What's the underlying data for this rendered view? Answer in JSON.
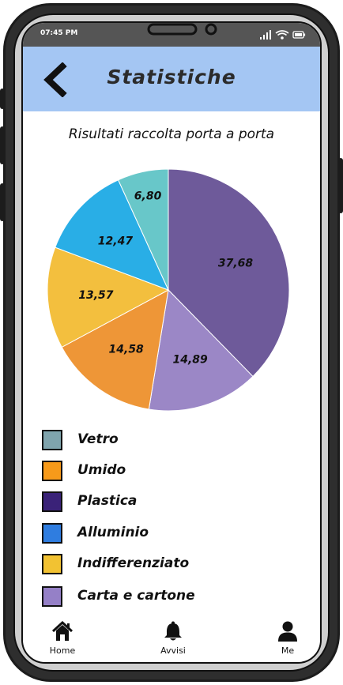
{
  "status_bar": {
    "time": "07:45 PM"
  },
  "app_bar": {
    "title": "Statistiche",
    "back_icon": "chevron-left-icon"
  },
  "chart_data": {
    "type": "pie",
    "title": "Risultati raccolta porta a porta",
    "slices": [
      {
        "label": "Plastica",
        "value": 37.68,
        "display": "37,68",
        "color": "#6e5a9a"
      },
      {
        "label": "Carta e cartone",
        "value": 14.89,
        "display": "14,89",
        "color": "#9b87c6"
      },
      {
        "label": "Umido",
        "value": 14.58,
        "display": "14,58",
        "color": "#ee9637"
      },
      {
        "label": "Indifferenziato",
        "value": 13.57,
        "display": "13,57",
        "color": "#f3bf3e"
      },
      {
        "label": "Alluminio",
        "value": 12.47,
        "display": "12,47",
        "color": "#29aee6"
      },
      {
        "label": "Vetro",
        "value": 6.8,
        "display": "6,80",
        "color": "#68c7c9"
      }
    ],
    "legend_placement": "bottom",
    "legend": [
      {
        "label": "Vetro",
        "color": "#7fa4ad"
      },
      {
        "label": "Umido",
        "color": "#f79a1a"
      },
      {
        "label": "Plastica",
        "color": "#3a2278"
      },
      {
        "label": "Alluminio",
        "color": "#2f7de0"
      },
      {
        "label": "Indifferenziato",
        "color": "#f2c232"
      },
      {
        "label": "Carta e cartone",
        "color": "#9580c7"
      }
    ]
  },
  "nav": {
    "home_label": "Home",
    "avvisi_label": "Avvisi",
    "me_label": "Me",
    "home_icon": "home-icon",
    "avvisi_icon": "bell-icon",
    "me_icon": "user-icon"
  }
}
